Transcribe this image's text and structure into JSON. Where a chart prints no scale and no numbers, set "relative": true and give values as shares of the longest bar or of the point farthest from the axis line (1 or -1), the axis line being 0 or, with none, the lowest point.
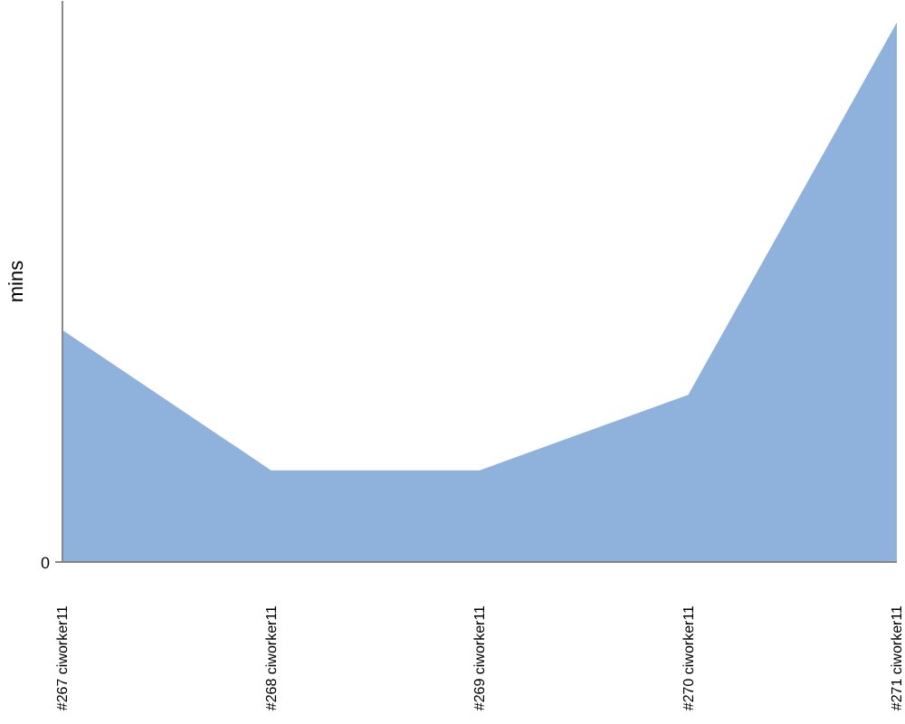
{
  "chart_data": {
    "type": "area",
    "ylabel": "mins",
    "relative": true,
    "annotations": [
      "0"
    ],
    "categories": [
      "#267 ciworker11",
      "#268 ciworker11",
      "#269 ciworker11",
      "#270 ciworker11",
      "#271 ciworker11"
    ],
    "values": [
      0.43,
      0.17,
      0.17,
      0.31,
      1
    ],
    "color": "#8fb2dc"
  }
}
